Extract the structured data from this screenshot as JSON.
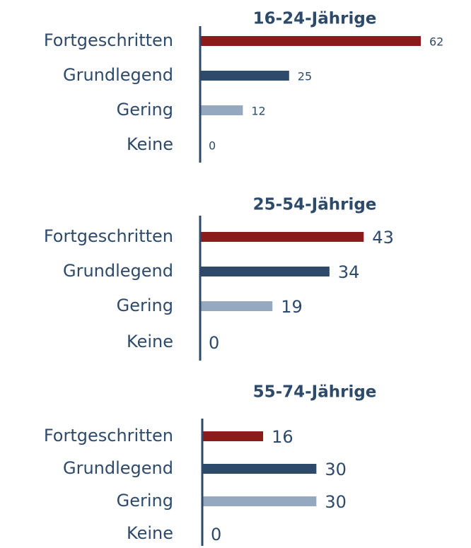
{
  "chart_data": [
    {
      "type": "bar",
      "orientation": "horizontal",
      "title": "16-24-Jährige",
      "categories": [
        "Fortgeschritten",
        "Grundlegend",
        "Gering",
        "Keine"
      ],
      "values": [
        62,
        25,
        12,
        0
      ],
      "colors": [
        "#8b1a1a",
        "#2e4a6b",
        "#94a8bf",
        "#2e4a6b"
      ],
      "xlim": [
        0,
        62
      ]
    },
    {
      "type": "bar",
      "orientation": "horizontal",
      "title": "25-54-Jährige",
      "categories": [
        "Fortgeschritten",
        "Grundlegend",
        "Gering",
        "Keine"
      ],
      "values": [
        43,
        34,
        19,
        0
      ],
      "colors": [
        "#8b1a1a",
        "#2e4a6b",
        "#94a8bf",
        "#2e4a6b"
      ],
      "xlim": [
        0,
        58
      ]
    },
    {
      "type": "bar",
      "orientation": "horizontal",
      "title": "55-74-Jährige",
      "categories": [
        "Fortgeschritten",
        "Grundlegend",
        "Gering",
        "Keine"
      ],
      "values": [
        16,
        30,
        30,
        0
      ],
      "colors": [
        "#8b1a1a",
        "#2e4a6b",
        "#94a8bf",
        "#2e4a6b"
      ],
      "xlim": [
        0,
        58
      ]
    }
  ]
}
